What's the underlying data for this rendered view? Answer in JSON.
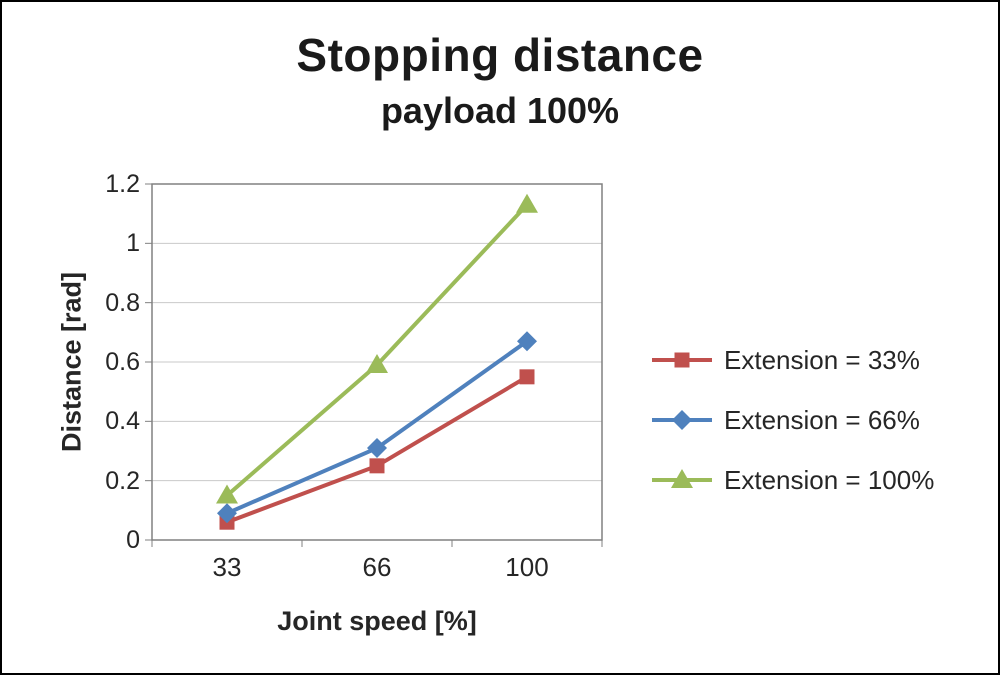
{
  "title": "Stopping distance",
  "subtitle": "payload 100%",
  "chart_data": {
    "type": "line",
    "categories": [
      "33",
      "66",
      "100"
    ],
    "series": [
      {
        "name": "Extension = 33%",
        "marker": "square",
        "color": "#C0504D",
        "values": [
          0.06,
          0.25,
          0.55
        ]
      },
      {
        "name": "Extension = 66%",
        "marker": "diamond",
        "color": "#4F81BD",
        "values": [
          0.09,
          0.31,
          0.67
        ]
      },
      {
        "name": "Extension = 100%",
        "marker": "triangle",
        "color": "#9BBB59",
        "values": [
          0.15,
          0.59,
          1.13
        ]
      }
    ],
    "xlabel": "Joint speed [%]",
    "ylabel": "Distance [rad]",
    "ylim": [
      0,
      1.2
    ],
    "yticks": [
      0,
      0.2,
      0.4,
      0.6,
      0.8,
      1,
      1.2
    ],
    "grid": true,
    "legend_position": "right",
    "colors": {
      "grid": "#C9C9C9",
      "axis": "#808080",
      "text": "#262626"
    }
  }
}
